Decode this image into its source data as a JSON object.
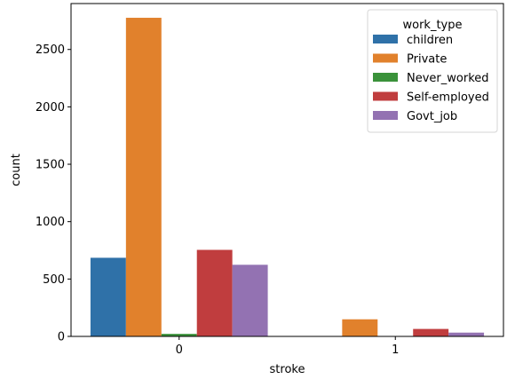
{
  "chart_data": {
    "type": "bar",
    "xlabel": "stroke",
    "ylabel": "count",
    "categories": [
      "0",
      "1"
    ],
    "ylim": [
      0,
      2900
    ],
    "yticks": [
      0,
      500,
      1000,
      1500,
      2000,
      2500
    ],
    "grid": false,
    "legend": {
      "title": "work_type",
      "placement": "top-right"
    },
    "series": [
      {
        "name": "children",
        "color": "#2f71a8",
        "values": [
          685,
          2
        ]
      },
      {
        "name": "Private",
        "color": "#e1812c",
        "values": [
          2776,
          149
        ]
      },
      {
        "name": "Never_worked",
        "color": "#3a923a",
        "values": [
          22,
          0
        ]
      },
      {
        "name": "Self-employed",
        "color": "#c03d3e",
        "values": [
          754,
          65
        ]
      },
      {
        "name": "Govt_job",
        "color": "#9372b2",
        "values": [
          624,
          33
        ]
      }
    ]
  }
}
